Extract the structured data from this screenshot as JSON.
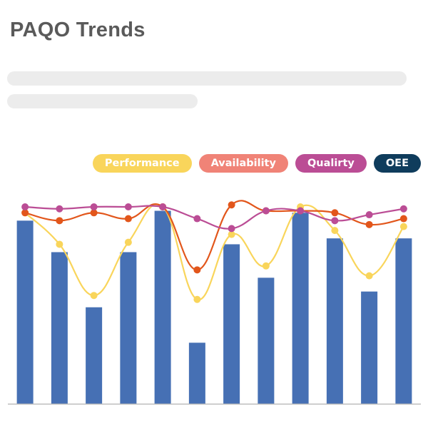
{
  "header": {
    "title": "PAQO Trends"
  },
  "colors": {
    "performance": "#f9d55b",
    "availability": "#f08377",
    "availability_line": "#e2561b",
    "quality": "#bb4d95",
    "oee": "#0f3c5c",
    "bars": "#4670b4",
    "skeleton": "#ececec",
    "baseline": "#bdbdbd"
  },
  "legend": [
    {
      "key": "performance",
      "label": "Performance",
      "color": "#f9d55b"
    },
    {
      "key": "availability",
      "label": "Availability",
      "color": "#f08377"
    },
    {
      "key": "quality",
      "label": "Qualirty",
      "color": "#bb4d95"
    },
    {
      "key": "oee",
      "label": "OEE",
      "color": "#0f3c5c"
    }
  ],
  "chart_data": {
    "type": "bar",
    "title": "PAQO Trends",
    "categories": [
      "",
      "",
      "",
      "",
      "",
      "",
      "",
      "",
      "",
      "",
      "",
      ""
    ],
    "ylim": [
      0,
      100
    ],
    "grid": false,
    "legend_position": "top-right",
    "series": [
      {
        "name": "OEE",
        "type": "bar",
        "color": "#4670b4",
        "values": [
          93,
          77,
          49,
          77,
          98,
          31,
          81,
          64,
          97,
          84,
          57,
          84
        ]
      },
      {
        "name": "Performance",
        "type": "line",
        "color": "#f9d55b",
        "values": [
          97,
          81,
          55,
          82,
          100,
          53,
          86,
          70,
          100,
          88,
          65,
          90
        ]
      },
      {
        "name": "Availability",
        "type": "line",
        "color": "#e2561b",
        "values": [
          97,
          93,
          97,
          94,
          100,
          68,
          101,
          98,
          98,
          97,
          91,
          94
        ]
      },
      {
        "name": "Qualirty",
        "type": "line",
        "color": "#bb4d95",
        "values": [
          100,
          99,
          100,
          100,
          100,
          94,
          89,
          98,
          98,
          93,
          96,
          99
        ]
      }
    ]
  }
}
